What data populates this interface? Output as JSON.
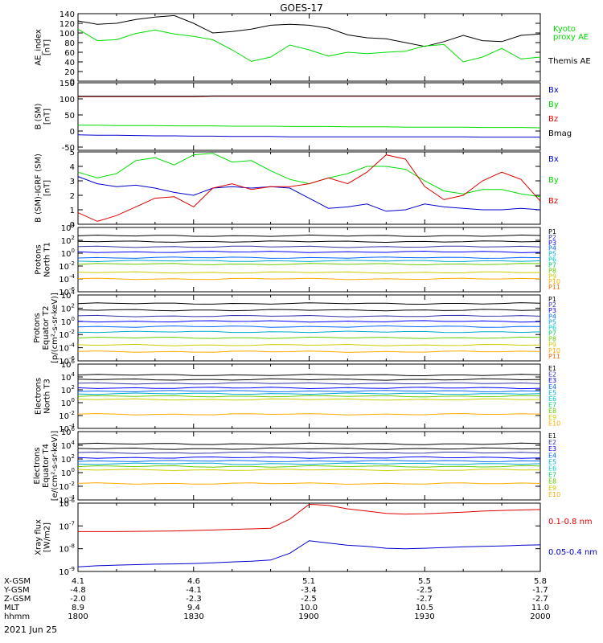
{
  "title": "GOES-17",
  "date_label": "2021 Jun 25",
  "colors": {
    "black": "#000000",
    "green": "#00dd00",
    "red": "#e00000",
    "blue": "#0000cc",
    "P": [
      "#000000",
      "#000000",
      "#3333aa",
      "#0000ff",
      "#0066ff",
      "#00aacc",
      "#00cccc",
      "#00cc66",
      "#66cc00",
      "#cccc00",
      "#ffaa00",
      "#ff6600",
      "#cc0000"
    ]
  },
  "xaxis": {
    "ticks": [
      "1800",
      "1830",
      "1900",
      "1930",
      "2000"
    ],
    "rows": [
      {
        "label": "X-GSM",
        "values": [
          "4.1",
          "4.6",
          "5.1",
          "5.5",
          "5.8"
        ]
      },
      {
        "label": "Y-GSM",
        "values": [
          "-4.8",
          "-4.1",
          "-3.4",
          "-2.5",
          "-1.7"
        ]
      },
      {
        "label": "Z-GSM",
        "values": [
          "-2.0",
          "-2.3",
          "-2.5",
          "-2.7",
          "-2.7"
        ]
      },
      {
        "label": "MLT",
        "values": [
          "8.9",
          "9.4",
          "10.0",
          "10.5",
          "11.0"
        ]
      },
      {
        "label": "hhmm",
        "values": [
          "1800",
          "1830",
          "1900",
          "1930",
          "2000"
        ]
      }
    ]
  },
  "chart_data": [
    {
      "type": "line",
      "ylabel": [
        "AE_index",
        "[nT]"
      ],
      "ylim": [
        0,
        140
      ],
      "yticks": [
        "0",
        "20",
        "40",
        "60",
        "80",
        "100",
        "120",
        "140"
      ],
      "legend": [
        {
          "text": "Kyoto",
          "color": "green"
        },
        {
          "text": "proxy AE",
          "color": "green"
        },
        {
          "text": "Themis AE",
          "color": "black"
        }
      ],
      "x": [
        0,
        5,
        10,
        15,
        20,
        25,
        30,
        35,
        40,
        45,
        50,
        55,
        60,
        65,
        70,
        75,
        80,
        85,
        90,
        95,
        100,
        105,
        110,
        115,
        120
      ],
      "series": [
        {
          "name": "Themis AE",
          "color": "black",
          "values": [
            125,
            118,
            120,
            128,
            133,
            136,
            120,
            100,
            103,
            108,
            116,
            118,
            116,
            110,
            96,
            90,
            88,
            80,
            72,
            82,
            95,
            84,
            82,
            95,
            98
          ]
        },
        {
          "name": "Kyoto proxy AE",
          "color": "green",
          "values": [
            108,
            84,
            86,
            99,
            106,
            98,
            93,
            86,
            65,
            41,
            50,
            75,
            65,
            52,
            60,
            57,
            60,
            62,
            73,
            76,
            40,
            50,
            68,
            46,
            50
          ]
        }
      ]
    },
    {
      "type": "line",
      "ylabel": [
        "B (SM)",
        "[nT]"
      ],
      "ylim": [
        -60,
        150
      ],
      "yticks": [
        "-50",
        "0",
        "50",
        "100",
        "150"
      ],
      "legend": [
        {
          "text": "Bx",
          "color": "blue"
        },
        {
          "text": "By",
          "color": "green"
        },
        {
          "text": "Bz",
          "color": "red"
        },
        {
          "text": "Bmag",
          "color": "black"
        }
      ],
      "series": [
        {
          "name": "Bx",
          "color": "blue",
          "values": [
            -12,
            -13,
            -13,
            -14,
            -15,
            -15,
            -16,
            -16,
            -17,
            -17,
            -17,
            -18,
            -18,
            -18,
            -18,
            -18,
            -18,
            -18,
            -18,
            -18,
            -18,
            -19,
            -19,
            -19,
            -19
          ]
        },
        {
          "name": "By",
          "color": "green",
          "values": [
            18,
            18,
            17,
            17,
            17,
            16,
            16,
            16,
            15,
            15,
            15,
            14,
            14,
            14,
            13,
            13,
            13,
            12,
            12,
            12,
            12,
            11,
            11,
            11,
            10
          ]
        },
        {
          "name": "Bz",
          "color": "red",
          "values": [
            107,
            107,
            107,
            107,
            107,
            107,
            107,
            108,
            108,
            108,
            108,
            108,
            108,
            108,
            108,
            108,
            108,
            108,
            108,
            108,
            108,
            108,
            108,
            108,
            108
          ]
        },
        {
          "name": "Bmag",
          "color": "black",
          "values": [
            108,
            108,
            108,
            108,
            108,
            108,
            108,
            109,
            109,
            109,
            109,
            109,
            109,
            109,
            109,
            109,
            109,
            109,
            109,
            109,
            109,
            109,
            109,
            109,
            109
          ]
        }
      ]
    },
    {
      "type": "line",
      "ylabel": [
        "B (SM)-IGRF (SM)",
        "[nT]"
      ],
      "ylim": [
        0,
        5
      ],
      "yticks": [
        "0",
        "1",
        "2",
        "3",
        "4",
        "5"
      ],
      "legend": [
        {
          "text": "Bx",
          "color": "blue"
        },
        {
          "text": "By",
          "color": "green"
        },
        {
          "text": "Bz",
          "color": "red"
        }
      ],
      "series": [
        {
          "name": "Bx",
          "color": "blue",
          "values": [
            3.3,
            2.8,
            2.6,
            2.7,
            2.5,
            2.2,
            2.0,
            2.5,
            2.6,
            2.5,
            2.6,
            2.5,
            1.8,
            1.1,
            1.2,
            1.4,
            0.9,
            1.0,
            1.4,
            1.2,
            1.1,
            1.0,
            1.0,
            1.1,
            1.0
          ]
        },
        {
          "name": "By",
          "color": "green",
          "values": [
            3.6,
            3.2,
            3.5,
            4.4,
            4.6,
            4.1,
            4.8,
            4.9,
            4.3,
            4.4,
            3.7,
            3.1,
            2.8,
            3.2,
            3.5,
            4.0,
            4.0,
            3.8,
            3.0,
            2.3,
            2.1,
            2.4,
            2.4,
            2.1,
            1.9
          ]
        },
        {
          "name": "Bz",
          "color": "red",
          "values": [
            0.8,
            0.2,
            0.6,
            1.2,
            1.8,
            1.9,
            1.2,
            2.5,
            2.8,
            2.4,
            2.6,
            2.6,
            2.8,
            3.2,
            2.8,
            3.6,
            4.8,
            4.5,
            2.6,
            1.7,
            2.0,
            3.0,
            3.6,
            3.1,
            1.6
          ]
        }
      ]
    },
    {
      "type": "line",
      "log": true,
      "ylabel": [
        "Protons",
        "North T1"
      ],
      "ylim": [
        -6,
        4
      ],
      "ytick_exps": [
        4,
        2,
        0,
        -2,
        -4,
        -6
      ],
      "ytick_base": "10",
      "legend_prefix": "P",
      "legend": [
        "P1",
        "P2",
        "P3",
        "P4",
        "P5",
        "P6",
        "P7",
        "P8",
        "P9",
        "P10",
        "P11"
      ],
      "levels": [
        2.7,
        1.8,
        1.0,
        0.2,
        -0.7,
        -1.2,
        -1.7,
        -3.0,
        -4.0
      ]
    },
    {
      "type": "line",
      "log": true,
      "ylabel": [
        "Protons",
        "Equator T2",
        "[p/(cm²-s-sr-keV)]"
      ],
      "ylim": [
        -6,
        4
      ],
      "ytick_exps": [
        4,
        2,
        0,
        -2,
        -4,
        -6
      ],
      "ytick_base": "10",
      "legend": [
        "P1",
        "P2",
        "P3",
        "P4",
        "P5",
        "P6",
        "P7",
        "P8",
        "P9",
        "P10",
        "P11"
      ],
      "levels": [
        2.7,
        1.7,
        0.8,
        0.0,
        -0.8,
        -1.6,
        -2.5,
        -3.6,
        -4.6
      ]
    },
    {
      "type": "line",
      "log": true,
      "ylabel": [
        "Electrons",
        "North T3"
      ],
      "ylim": [
        -4,
        6
      ],
      "ytick_exps": [
        6,
        4,
        2,
        0,
        -2,
        -4
      ],
      "ytick_base": "10",
      "legend": [
        "E1",
        "E2",
        "E3",
        "E4",
        "E5",
        "E6",
        "E7",
        "E8",
        "E9",
        "E10"
      ],
      "levels": [
        4.3,
        3.6,
        3.0,
        2.3,
        1.8,
        1.4,
        1.0,
        0.5,
        -1.8
      ]
    },
    {
      "type": "line",
      "log": true,
      "ylabel": [
        "Electrons",
        "Equator T4",
        "[e/(cm²-s-sr-keV)]"
      ],
      "ylim": [
        -4,
        6
      ],
      "ytick_exps": [
        6,
        4,
        2,
        0,
        -2,
        -4
      ],
      "ytick_base": "10",
      "legend": [
        "E1",
        "E2",
        "E3",
        "E4",
        "E5",
        "E6",
        "E7",
        "E8",
        "E9",
        "E10"
      ],
      "levels": [
        4.2,
        3.5,
        2.9,
        2.2,
        1.7,
        1.3,
        0.9,
        0.4,
        -1.6
      ]
    },
    {
      "type": "line",
      "log": true,
      "ylabel": [
        "Xray flux",
        "[W/m2]"
      ],
      "ylim": [
        -9,
        -6
      ],
      "ytick_exps": [
        -6,
        -7,
        -8,
        -9
      ],
      "ytick_base": "10",
      "legend": [
        {
          "text": "0.1-0.8 nm",
          "color": "red"
        },
        {
          "text": "0.05-0.4 nm",
          "color": "blue"
        }
      ],
      "series": [
        {
          "name": "0.1-0.8 nm",
          "color": "red",
          "values": [
            -7.25,
            -7.25,
            -7.25,
            -7.24,
            -7.23,
            -7.22,
            -7.2,
            -7.18,
            -7.15,
            -7.13,
            -7.1,
            -6.7,
            -6.05,
            -6.1,
            -6.25,
            -6.35,
            -6.45,
            -6.48,
            -6.47,
            -6.43,
            -6.4,
            -6.35,
            -6.32,
            -6.3,
            -6.28
          ]
        },
        {
          "name": "0.05-0.4 nm",
          "color": "blue",
          "values": [
            -8.8,
            -8.75,
            -8.72,
            -8.7,
            -8.68,
            -8.67,
            -8.65,
            -8.62,
            -8.58,
            -8.55,
            -8.5,
            -8.2,
            -7.65,
            -7.75,
            -7.85,
            -7.9,
            -7.98,
            -8.0,
            -7.98,
            -7.95,
            -7.92,
            -7.9,
            -7.88,
            -7.85,
            -7.83
          ]
        }
      ]
    }
  ]
}
